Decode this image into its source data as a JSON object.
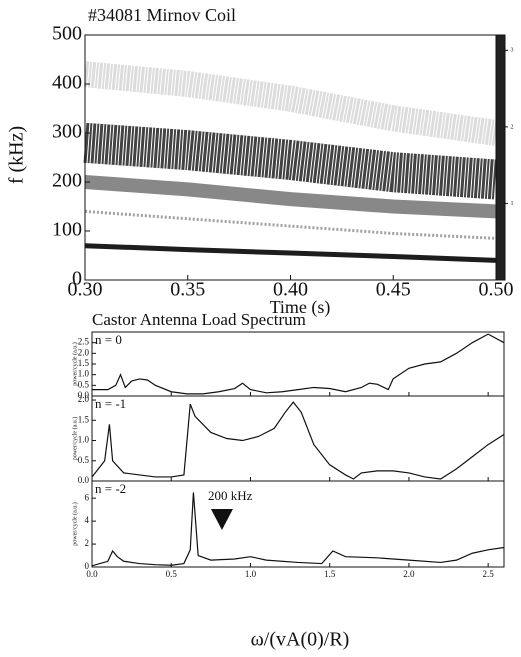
{
  "chart_data": [
    {
      "type": "spectrogram",
      "title": "#34081 Mirnov Coil",
      "xlabel": "Time (s)",
      "ylabel": "f (kHz)",
      "xlim": [
        0.3,
        0.5
      ],
      "xticks": [
        {
          "value": 0.3,
          "label": "0.30"
        },
        0.35,
        {
          "value": 0.4,
          "label": "0.40"
        },
        0.45,
        {
          "value": 0.5,
          "label": "0.50"
        }
      ],
      "ylim": [
        0,
        500
      ],
      "yticks": [
        0,
        100,
        200,
        300,
        400,
        500
      ],
      "clim": [
        0,
        3.2
      ],
      "colorbar_ticks": [
        1,
        2,
        3
      ],
      "x": [
        0.3,
        0.35,
        0.4,
        0.45,
        0.5
      ],
      "series": [
        {
          "color": "#222222",
          "values": [
            280,
            265,
            245,
            220,
            205
          ]
        },
        {
          "color": "#555555",
          "values": [
            200,
            185,
            165,
            150,
            140
          ]
        },
        {
          "color": "#888888",
          "values": [
            140,
            125,
            110,
            95,
            85
          ]
        },
        {
          "color": "#111111",
          "values": [
            70,
            62,
            55,
            48,
            40
          ]
        },
        {
          "color": "#9a9a9a",
          "values": [
            420,
            400,
            370,
            330,
            300
          ]
        }
      ]
    },
    {
      "type": "line",
      "title": "Castor Antenna Load Spectrum",
      "label": "n = 0",
      "ylabel": "power/cycle (a.u.)",
      "color": "#111111",
      "xlim": [
        0,
        2.6
      ],
      "xticks": [
        0,
        0.5,
        1,
        1.5,
        2,
        2.5
      ],
      "ylim": [
        0,
        3
      ],
      "yticks": [
        {
          "value": 0,
          "label": "0.0"
        },
        0.5,
        {
          "value": 1,
          "label": "1.0"
        },
        1.5,
        {
          "value": 2,
          "label": "2.0"
        },
        2.5
      ],
      "x": [
        0,
        0.1,
        0.15,
        0.18,
        0.21,
        0.25,
        0.3,
        0.35,
        0.4,
        0.5,
        0.6,
        0.7,
        0.8,
        0.9,
        0.95,
        1.0,
        1.1,
        1.2,
        1.3,
        1.4,
        1.5,
        1.6,
        1.7,
        1.75,
        1.8,
        1.87,
        1.9,
        2.0,
        2.1,
        2.2,
        2.3,
        2.4,
        2.5,
        2.6
      ],
      "values": [
        0.3,
        0.3,
        0.5,
        1.0,
        0.4,
        0.7,
        0.8,
        0.75,
        0.5,
        0.2,
        0.1,
        0.1,
        0.2,
        0.35,
        0.6,
        0.3,
        0.15,
        0.2,
        0.3,
        0.4,
        0.35,
        0.2,
        0.4,
        0.6,
        0.55,
        0.3,
        0.8,
        1.3,
        1.5,
        1.6,
        2.0,
        2.5,
        2.9,
        2.5
      ]
    },
    {
      "type": "line",
      "label": "n = -1",
      "ylabel": "power/cycle (a.u.)",
      "color": "#111111",
      "xlim": [
        0,
        2.6
      ],
      "xticks": [
        0,
        0.5,
        1,
        1.5,
        2,
        2.5
      ],
      "ylim": [
        0,
        2.1
      ],
      "yticks": [
        {
          "value": 0,
          "label": "0.0"
        },
        0.5,
        {
          "value": 1,
          "label": "1.0"
        },
        1.5,
        {
          "value": 2,
          "label": "2.0"
        }
      ],
      "x": [
        0,
        0.08,
        0.11,
        0.13,
        0.2,
        0.3,
        0.4,
        0.5,
        0.58,
        0.62,
        0.65,
        0.75,
        0.85,
        0.95,
        1.05,
        1.15,
        1.22,
        1.27,
        1.32,
        1.4,
        1.5,
        1.6,
        1.65,
        1.7,
        1.8,
        1.9,
        2.0,
        2.1,
        2.2,
        2.3,
        2.4,
        2.5,
        2.6
      ],
      "values": [
        0.1,
        0.5,
        1.4,
        0.5,
        0.2,
        0.15,
        0.1,
        0.1,
        0.15,
        1.9,
        1.6,
        1.2,
        1.05,
        1.0,
        1.1,
        1.3,
        1.7,
        1.95,
        1.7,
        0.9,
        0.4,
        0.15,
        0.05,
        0.2,
        0.25,
        0.25,
        0.2,
        0.1,
        0.05,
        0.3,
        0.6,
        0.9,
        1.15
      ]
    },
    {
      "type": "line",
      "label": "n = -2",
      "ylabel": "power/cycle (a.u.)",
      "xlabel": "ω/(vA(0)/R)",
      "color": "#111111",
      "xlim": [
        0,
        2.6
      ],
      "xticks": [
        {
          "value": 0,
          "label": "0.0"
        },
        0.5,
        {
          "value": 1,
          "label": "1.0"
        },
        1.5,
        {
          "value": 2,
          "label": "2.0"
        },
        2.5
      ],
      "ylim": [
        0,
        7.5
      ],
      "yticks": [
        0,
        2,
        4,
        6
      ],
      "annotation": {
        "text": "200 kHz",
        "x": 0.82
      },
      "x": [
        0,
        0.1,
        0.13,
        0.16,
        0.2,
        0.3,
        0.4,
        0.5,
        0.58,
        0.62,
        0.64,
        0.67,
        0.75,
        0.9,
        1.0,
        1.1,
        1.3,
        1.45,
        1.52,
        1.6,
        1.8,
        2.0,
        2.2,
        2.3,
        2.4,
        2.5,
        2.6
      ],
      "values": [
        0.1,
        0.5,
        1.4,
        0.9,
        0.5,
        0.3,
        0.2,
        0.15,
        0.3,
        1.5,
        6.5,
        1.0,
        0.6,
        0.7,
        0.9,
        0.6,
        0.4,
        0.3,
        1.4,
        0.9,
        0.8,
        0.6,
        0.4,
        0.6,
        1.2,
        1.5,
        1.7
      ]
    }
  ]
}
